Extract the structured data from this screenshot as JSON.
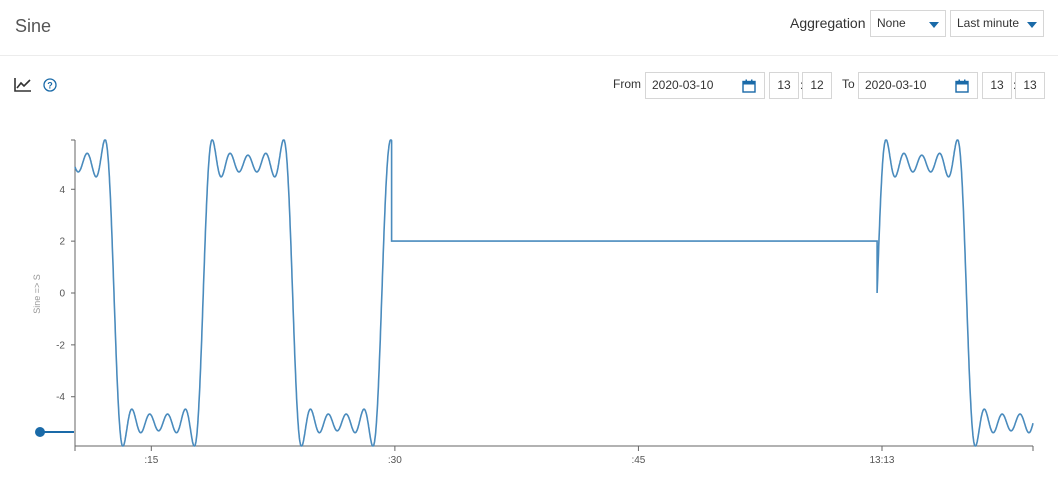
{
  "header": {
    "title": "Sine",
    "aggregation_label": "Aggregation",
    "aggregation_value": "None",
    "range_value": "Last minute"
  },
  "toolbar": {
    "chart_icon": "line-chart-icon",
    "help_icon": "help-icon"
  },
  "time_range": {
    "from_label": "From",
    "from_date": "2020-03-10",
    "from_hour": "13",
    "from_minute": "12",
    "to_label": "To",
    "to_date": "2020-03-10",
    "to_hour": "13",
    "to_minute": "13",
    "separator": ":"
  },
  "colors": {
    "accent": "#1a6aa8",
    "line": "#4a8bbd"
  },
  "chart_data": {
    "type": "line",
    "ylabel": "Sine => S",
    "xlabel": "",
    "ylim": [
      -5.9,
      5.9
    ],
    "yticks": [
      "4",
      "2",
      "0",
      "-2",
      "-4"
    ],
    "ytick_values": [
      4,
      2,
      0,
      -2,
      -4
    ],
    "xticks": [
      ":15",
      ":30",
      ":45",
      "13:13"
    ],
    "xtick_seconds": [
      15,
      30,
      45,
      60
    ],
    "xlim_seconds": [
      10.3,
      69.3
    ],
    "series": [
      {
        "segments": [
          {
            "type": "square",
            "x_start": 10.3,
            "x_end": 29.8,
            "period": 11.0,
            "phase_start": 7.2,
            "amplitude": 5.0
          },
          {
            "type": "constant",
            "x_start": 29.8,
            "x_end": 59.7,
            "value": 2.0
          },
          {
            "type": "square",
            "x_start": 59.7,
            "x_end": 69.3,
            "period": 11.0,
            "phase_start": 59.7,
            "amplitude": 5.0
          }
        ]
      }
    ]
  }
}
